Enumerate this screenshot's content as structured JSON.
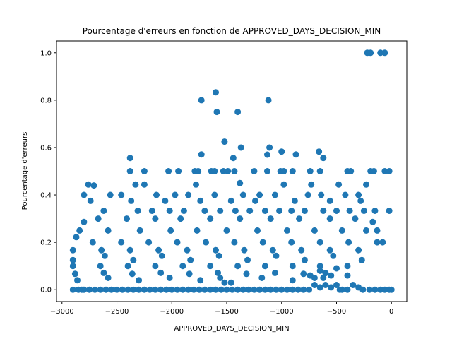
{
  "chart_data": {
    "type": "scatter",
    "title": "Pourcentage d'erreurs en fonction de APPROVED_DAYS_DECISION_MIN",
    "xlabel": "APPROVED_DAYS_DECISION_MIN",
    "ylabel": "Pourcentage d'erreurs",
    "xlim": [
      -3050,
      140
    ],
    "ylim": [
      -0.05,
      1.05
    ],
    "xticks": [
      -3000,
      -2500,
      -2000,
      -1500,
      -1000,
      -500,
      0
    ],
    "xtick_labels": [
      "−3000",
      "−2500",
      "−2000",
      "−1500",
      "−1000",
      "−500",
      "0"
    ],
    "yticks": [
      0.0,
      0.2,
      0.4,
      0.6,
      0.8,
      1.0
    ],
    "ytick_labels": [
      "0.0",
      "0.2",
      "0.4",
      "0.6",
      "0.8",
      "1.0"
    ],
    "grid": false,
    "marker_color": "#1f77b4",
    "series": [
      {
        "points": [
          [
            -220,
            1.0
          ],
          [
            -190,
            1.0
          ],
          [
            -100,
            1.0
          ],
          [
            -60,
            1.0
          ],
          [
            -1730,
            0.8
          ],
          [
            -1120,
            0.8
          ],
          [
            -1600,
            0.833
          ],
          [
            -1590,
            0.75
          ],
          [
            -1400,
            0.75
          ],
          [
            -1520,
            0.625
          ],
          [
            -1370,
            0.6
          ],
          [
            -1110,
            0.6
          ],
          [
            -1130,
            0.57
          ],
          [
            -1000,
            0.583
          ],
          [
            -870,
            0.571
          ],
          [
            -1730,
            0.571
          ],
          [
            -660,
            0.583
          ],
          [
            -620,
            0.556
          ],
          [
            -1440,
            0.556
          ],
          [
            -2380,
            0.556
          ],
          [
            -2380,
            0.5
          ],
          [
            -2250,
            0.5
          ],
          [
            -2030,
            0.5
          ],
          [
            -1940,
            0.5
          ],
          [
            -1790,
            0.5
          ],
          [
            -1760,
            0.5
          ],
          [
            -1640,
            0.5
          ],
          [
            -1610,
            0.5
          ],
          [
            -1530,
            0.5
          ],
          [
            -1490,
            0.5
          ],
          [
            -1430,
            0.5
          ],
          [
            -1250,
            0.5
          ],
          [
            -1130,
            0.5
          ],
          [
            -1010,
            0.5
          ],
          [
            -980,
            0.5
          ],
          [
            -900,
            0.5
          ],
          [
            -740,
            0.5
          ],
          [
            -650,
            0.5
          ],
          [
            -400,
            0.5
          ],
          [
            -370,
            0.5
          ],
          [
            -190,
            0.5
          ],
          [
            -160,
            0.5
          ],
          [
            -60,
            0.5
          ],
          [
            -20,
            0.5
          ],
          [
            -2760,
            0.444
          ],
          [
            -2710,
            0.44
          ],
          [
            -2250,
            0.444
          ],
          [
            -2330,
            0.444
          ],
          [
            -1780,
            0.444
          ],
          [
            -1380,
            0.45
          ],
          [
            -980,
            0.444
          ],
          [
            -730,
            0.444
          ],
          [
            -480,
            0.444
          ],
          [
            -230,
            0.444
          ],
          [
            -2800,
            0.4
          ],
          [
            -2560,
            0.4
          ],
          [
            -2460,
            0.4
          ],
          [
            -2140,
            0.4
          ],
          [
            -1970,
            0.4
          ],
          [
            -1850,
            0.4
          ],
          [
            -1610,
            0.4
          ],
          [
            -1350,
            0.4
          ],
          [
            -1200,
            0.4
          ],
          [
            -1060,
            0.4
          ],
          [
            -760,
            0.4
          ],
          [
            -640,
            0.4
          ],
          [
            -420,
            0.4
          ],
          [
            -300,
            0.4
          ],
          [
            -2740,
            0.375
          ],
          [
            -2370,
            0.375
          ],
          [
            -2060,
            0.375
          ],
          [
            -1740,
            0.375
          ],
          [
            -1460,
            0.375
          ],
          [
            -1240,
            0.375
          ],
          [
            -880,
            0.375
          ],
          [
            -560,
            0.375
          ],
          [
            -280,
            0.375
          ],
          [
            -2620,
            0.333
          ],
          [
            -2310,
            0.333
          ],
          [
            -2180,
            0.333
          ],
          [
            -2020,
            0.333
          ],
          [
            -1890,
            0.333
          ],
          [
            -1700,
            0.333
          ],
          [
            -1560,
            0.333
          ],
          [
            -1420,
            0.333
          ],
          [
            -1290,
            0.333
          ],
          [
            -1150,
            0.333
          ],
          [
            -1020,
            0.333
          ],
          [
            -910,
            0.333
          ],
          [
            -790,
            0.333
          ],
          [
            -620,
            0.333
          ],
          [
            -500,
            0.333
          ],
          [
            -380,
            0.333
          ],
          [
            -250,
            0.333
          ],
          [
            -150,
            0.333
          ],
          [
            -20,
            0.333
          ],
          [
            -2800,
            0.286
          ],
          [
            -2670,
            0.3
          ],
          [
            -2410,
            0.3
          ],
          [
            -2150,
            0.3
          ],
          [
            -1920,
            0.3
          ],
          [
            -1650,
            0.3
          ],
          [
            -1380,
            0.3
          ],
          [
            -1100,
            0.3
          ],
          [
            -840,
            0.3
          ],
          [
            -560,
            0.3
          ],
          [
            -330,
            0.3
          ],
          [
            -170,
            0.286
          ],
          [
            -2840,
            0.25
          ],
          [
            -2580,
            0.25
          ],
          [
            -2290,
            0.25
          ],
          [
            -2010,
            0.25
          ],
          [
            -1770,
            0.25
          ],
          [
            -1500,
            0.25
          ],
          [
            -1220,
            0.25
          ],
          [
            -950,
            0.25
          ],
          [
            -700,
            0.25
          ],
          [
            -450,
            0.25
          ],
          [
            -230,
            0.25
          ],
          [
            -130,
            0.25
          ],
          [
            -2870,
            0.222
          ],
          [
            -2720,
            0.2
          ],
          [
            -2460,
            0.2
          ],
          [
            -2210,
            0.2
          ],
          [
            -1950,
            0.2
          ],
          [
            -1690,
            0.2
          ],
          [
            -1430,
            0.2
          ],
          [
            -1170,
            0.2
          ],
          [
            -910,
            0.2
          ],
          [
            -650,
            0.2
          ],
          [
            -390,
            0.2
          ],
          [
            -130,
            0.2
          ],
          [
            -80,
            0.2
          ],
          [
            -2900,
            0.167
          ],
          [
            -2640,
            0.167
          ],
          [
            -2380,
            0.167
          ],
          [
            -2120,
            0.167
          ],
          [
            -1860,
            0.167
          ],
          [
            -1600,
            0.167
          ],
          [
            -1340,
            0.167
          ],
          [
            -1080,
            0.167
          ],
          [
            -820,
            0.167
          ],
          [
            -560,
            0.167
          ],
          [
            -300,
            0.167
          ],
          [
            -2900,
            0.125
          ],
          [
            -2610,
            0.143
          ],
          [
            -2350,
            0.125
          ],
          [
            -2090,
            0.143
          ],
          [
            -1830,
            0.125
          ],
          [
            -1570,
            0.143
          ],
          [
            -1310,
            0.125
          ],
          [
            -1050,
            0.143
          ],
          [
            -790,
            0.125
          ],
          [
            -530,
            0.143
          ],
          [
            -270,
            0.125
          ],
          [
            -2900,
            0.1
          ],
          [
            -2650,
            0.1
          ],
          [
            -2400,
            0.1
          ],
          [
            -2150,
            0.1
          ],
          [
            -1900,
            0.1
          ],
          [
            -1650,
            0.1
          ],
          [
            -1400,
            0.1
          ],
          [
            -1150,
            0.1
          ],
          [
            -900,
            0.1
          ],
          [
            -650,
            0.1
          ],
          [
            -400,
            0.1
          ],
          [
            -2880,
            0.067
          ],
          [
            -2620,
            0.071
          ],
          [
            -2360,
            0.067
          ],
          [
            -2100,
            0.071
          ],
          [
            -1840,
            0.067
          ],
          [
            -1580,
            0.071
          ],
          [
            -1320,
            0.067
          ],
          [
            -1060,
            0.071
          ],
          [
            -800,
            0.067
          ],
          [
            -2860,
            0.04
          ],
          [
            -2580,
            0.05
          ],
          [
            -2300,
            0.04
          ],
          [
            -2020,
            0.05
          ],
          [
            -1740,
            0.04
          ],
          [
            -1460,
            0.03
          ],
          [
            -1180,
            0.05
          ],
          [
            -900,
            0.04
          ],
          [
            -620,
            0.05
          ],
          [
            -400,
            0.06
          ],
          [
            -2900,
            0.0
          ],
          [
            -2850,
            0.0
          ],
          [
            -2800,
            0.0
          ],
          [
            -2750,
            0.0
          ],
          [
            -2700,
            0.0
          ],
          [
            -2650,
            0.0
          ],
          [
            -2600,
            0.0
          ],
          [
            -2550,
            0.0
          ],
          [
            -2500,
            0.0
          ],
          [
            -2450,
            0.0
          ],
          [
            -2400,
            0.0
          ],
          [
            -2350,
            0.0
          ],
          [
            -2300,
            0.0
          ],
          [
            -2250,
            0.0
          ],
          [
            -2200,
            0.0
          ],
          [
            -2150,
            0.0
          ],
          [
            -2100,
            0.0
          ],
          [
            -2050,
            0.0
          ],
          [
            -2000,
            0.0
          ],
          [
            -1950,
            0.0
          ],
          [
            -1900,
            0.0
          ],
          [
            -1850,
            0.0
          ],
          [
            -1800,
            0.0
          ],
          [
            -1750,
            0.0
          ],
          [
            -1700,
            0.0
          ],
          [
            -1650,
            0.0
          ],
          [
            -1600,
            0.0
          ],
          [
            -1550,
            0.0
          ],
          [
            -1400,
            0.0
          ],
          [
            -1350,
            0.0
          ],
          [
            -1300,
            0.0
          ],
          [
            -1250,
            0.0
          ],
          [
            -1200,
            0.0
          ],
          [
            -1150,
            0.0
          ],
          [
            -1100,
            0.0
          ],
          [
            -1050,
            0.0
          ],
          [
            -1000,
            0.0
          ],
          [
            -950,
            0.0
          ],
          [
            -900,
            0.0
          ],
          [
            -850,
            0.0
          ],
          [
            -800,
            0.0
          ],
          [
            -750,
            0.0
          ],
          [
            -450,
            0.0
          ],
          [
            -400,
            0.0
          ],
          [
            -260,
            0.0
          ],
          [
            -200,
            0.0
          ],
          [
            -150,
            0.0
          ],
          [
            -100,
            0.0
          ],
          [
            -60,
            0.0
          ],
          [
            -20,
            0.0
          ],
          [
            0,
            0.0
          ],
          [
            -1500,
            0.0
          ],
          [
            -1450,
            0.0
          ],
          [
            -700,
            0.02
          ],
          [
            -650,
            0.01
          ],
          [
            -600,
            0.02
          ],
          [
            -550,
            0.01
          ],
          [
            -500,
            0.02
          ],
          [
            -350,
            0.02
          ],
          [
            -300,
            0.01
          ],
          [
            -740,
            0.06
          ],
          [
            -700,
            0.05
          ],
          [
            -650,
            0.08
          ],
          [
            -600,
            0.07
          ],
          [
            -550,
            0.06
          ],
          [
            -500,
            0.09
          ],
          [
            -470,
            0.0
          ],
          [
            -1560,
            0.05
          ],
          [
            -1520,
            0.03
          ],
          [
            -2820,
            0.0
          ]
        ]
      }
    ]
  }
}
